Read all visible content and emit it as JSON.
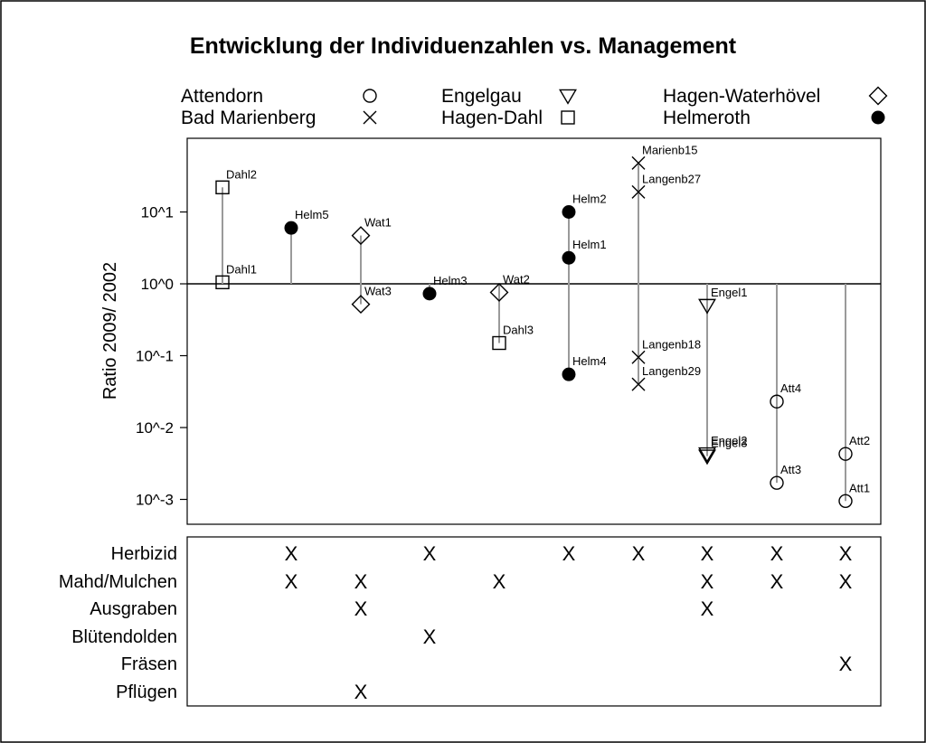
{
  "chart_data": {
    "type": "scatter",
    "title": "Entwicklung der Individuenzahlen vs. Management",
    "ylabel": "Ratio 2009/ 2002",
    "y_scale": "log10",
    "ylim": [
      0.0006,
      1500
    ],
    "y_ticks": [
      {
        "value": 10,
        "label": "10^1"
      },
      {
        "value": 1,
        "label": "10^0"
      },
      {
        "value": 0.1,
        "label": "10^-1"
      },
      {
        "value": 0.01,
        "label": "10^-2"
      },
      {
        "value": 0.001,
        "label": "10^-3"
      }
    ],
    "reference_line": 1,
    "legend": {
      "placement": "top",
      "items": [
        {
          "name": "Attendorn",
          "symbol": "circle-open"
        },
        {
          "name": "Bad Marienberg",
          "symbol": "cross"
        },
        {
          "name": "Engelgau",
          "symbol": "triangle-down-open"
        },
        {
          "name": "Hagen-Dahl",
          "symbol": "square-open"
        },
        {
          "name": "Hagen-Waterhövel",
          "symbol": "diamond-open"
        },
        {
          "name": "Helmeroth",
          "symbol": "circle-filled"
        }
      ]
    },
    "groups": [
      {
        "series": "Hagen-Dahl",
        "points": [
          {
            "label": "Dahl2",
            "y": 22
          },
          {
            "label": "Dahl1",
            "y": 1.05
          }
        ]
      },
      {
        "series": "Helmeroth",
        "points": [
          {
            "label": "Helm5",
            "y": 6
          }
        ]
      },
      {
        "series": "Hagen-Waterhövel",
        "points": [
          {
            "label": "Wat1",
            "y": 4.7
          },
          {
            "label": "Wat3",
            "y": 0.52
          }
        ]
      },
      {
        "series": "Helmeroth",
        "points": [
          {
            "label": "Helm3",
            "y": 0.73
          }
        ]
      },
      {
        "series": "Hagen-Waterhövel",
        "points": [
          {
            "label": "Wat2",
            "y": 0.76
          }
        ]
      },
      {
        "series": "Hagen-Dahl",
        "points": [
          {
            "label": "Dahl3",
            "y": 0.15
          }
        ]
      },
      {
        "series": "Helmeroth",
        "points": [
          {
            "label": "Helm2",
            "y": 10
          },
          {
            "label": "Helm1",
            "y": 2.3
          },
          {
            "label": "Helm4",
            "y": 0.055
          }
        ]
      },
      {
        "series": "Bad Marienberg",
        "points": [
          {
            "label": "Marienb15",
            "y": 48
          },
          {
            "label": "Langenb27",
            "y": 19
          },
          {
            "label": "Langenb18",
            "y": 0.095
          },
          {
            "label": "Langenb29",
            "y": 0.04
          }
        ]
      },
      {
        "series": "Engelgau",
        "points": [
          {
            "label": "Engel1",
            "y": 0.5
          },
          {
            "label": "Engel2",
            "y": 0.0043
          },
          {
            "label": "Engel3",
            "y": 0.004
          }
        ]
      },
      {
        "series": "Attendorn",
        "points": [
          {
            "label": "Att4",
            "y": 0.023
          },
          {
            "label": "Att3",
            "y": 0.0017
          }
        ]
      },
      {
        "series": "Attendorn",
        "points": [
          {
            "label": "Att2",
            "y": 0.0043
          },
          {
            "label": "Att1",
            "y": 0.00095
          }
        ]
      }
    ],
    "management": {
      "rows": [
        "Herbizid",
        "Mahd/Mulchen",
        "Ausgraben",
        "Blütendolden",
        "Fräsen",
        "Pflügen"
      ],
      "mark": "X",
      "matrix": [
        [
          0,
          1,
          0,
          1,
          0,
          1,
          1,
          1,
          1,
          1
        ],
        [
          0,
          1,
          1,
          0,
          1,
          0,
          0,
          1,
          1,
          1
        ],
        [
          0,
          0,
          1,
          0,
          0,
          0,
          0,
          1,
          0,
          0
        ],
        [
          0,
          0,
          0,
          1,
          0,
          0,
          0,
          0,
          0,
          0
        ],
        [
          0,
          0,
          0,
          0,
          0,
          0,
          0,
          0,
          0,
          1
        ],
        [
          0,
          0,
          1,
          0,
          0,
          0,
          0,
          0,
          0,
          0
        ]
      ]
    }
  }
}
